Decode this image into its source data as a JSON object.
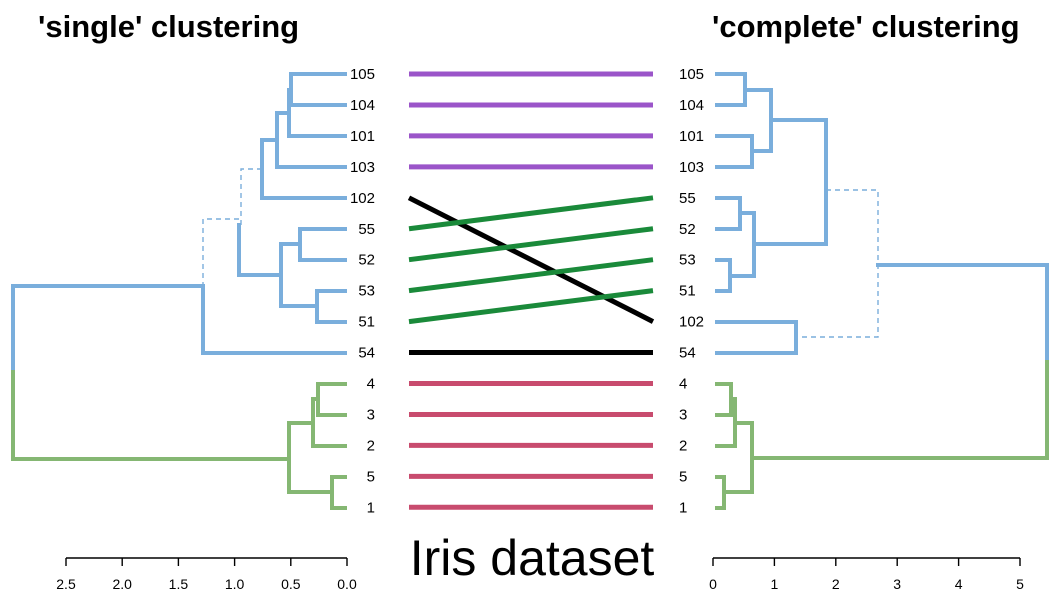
{
  "left_title": "'single' clustering",
  "right_title": "'complete' clustering",
  "center_title": "Iris dataset",
  "colors": {
    "cluster_a": "#7aaedc",
    "cluster_b": "#85b773",
    "virginica_links": "#9b55c9",
    "versicolor_links": "#1a8a3a",
    "setosa_links": "#c84b6e",
    "unique_links": "#000000"
  },
  "left_leaves": [
    "105",
    "104",
    "101",
    "103",
    "102",
    "55",
    "52",
    "53",
    "51",
    "54",
    "4",
    "3",
    "2",
    "5",
    "1"
  ],
  "right_leaves": [
    "105",
    "104",
    "101",
    "103",
    "55",
    "52",
    "53",
    "51",
    "102",
    "54",
    "4",
    "3",
    "2",
    "5",
    "1"
  ],
  "left_axis": {
    "ticks": [
      "2.5",
      "2.0",
      "1.5",
      "1.0",
      "0.5",
      "0.0"
    ],
    "tick_values": [
      2.5,
      2.0,
      1.5,
      1.0,
      0.5,
      0.0
    ]
  },
  "right_axis": {
    "ticks": [
      "0",
      "1",
      "2",
      "3",
      "4",
      "5"
    ],
    "tick_values": [
      0,
      1,
      2,
      3,
      4,
      5
    ]
  },
  "connectors": [
    {
      "from": "105",
      "to": "105",
      "color": "#9b55c9"
    },
    {
      "from": "104",
      "to": "104",
      "color": "#9b55c9"
    },
    {
      "from": "101",
      "to": "101",
      "color": "#9b55c9"
    },
    {
      "from": "103",
      "to": "103",
      "color": "#9b55c9"
    },
    {
      "from": "102",
      "to": "102",
      "color": "#000000"
    },
    {
      "from": "55",
      "to": "55",
      "color": "#1a8a3a"
    },
    {
      "from": "52",
      "to": "52",
      "color": "#1a8a3a"
    },
    {
      "from": "53",
      "to": "53",
      "color": "#1a8a3a"
    },
    {
      "from": "51",
      "to": "51",
      "color": "#1a8a3a"
    },
    {
      "from": "54",
      "to": "54",
      "color": "#000000"
    },
    {
      "from": "4",
      "to": "4",
      "color": "#c84b6e"
    },
    {
      "from": "3",
      "to": "3",
      "color": "#c84b6e"
    },
    {
      "from": "2",
      "to": "2",
      "color": "#c84b6e"
    },
    {
      "from": "5",
      "to": "5",
      "color": "#c84b6e"
    },
    {
      "from": "1",
      "to": "1",
      "color": "#c84b6e"
    }
  ]
}
